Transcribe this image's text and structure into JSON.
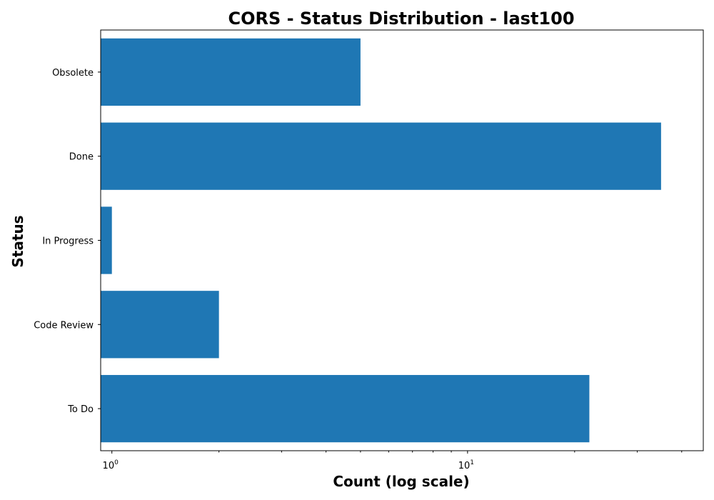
{
  "chart_data": {
    "type": "bar",
    "orientation": "horizontal",
    "title": "CORS - Status Distribution - last100",
    "xlabel": "Count (log scale)",
    "ylabel": "Status",
    "x_scale": "log",
    "xlim": [
      0.93,
      46
    ],
    "x_ticks": [
      {
        "value": 1,
        "base": "10",
        "exp": "0"
      },
      {
        "value": 10,
        "base": "10",
        "exp": "1"
      }
    ],
    "categories": [
      "To Do",
      "Code Review",
      "In Progress",
      "Done",
      "Obsolete"
    ],
    "values": [
      22,
      2,
      1,
      35,
      5
    ],
    "grid": false,
    "colors": {
      "bar": "#1f77b4",
      "axis": "#000000"
    }
  }
}
